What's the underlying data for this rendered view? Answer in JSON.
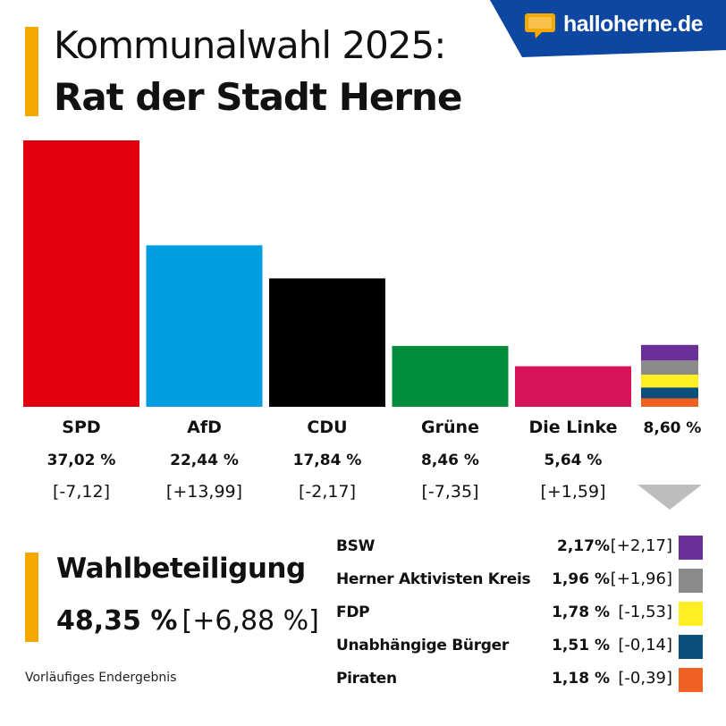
{
  "header": {
    "title_line1": "Kommunalwahl 2025:",
    "title_line2": "Rat der Stadt Herne",
    "accent_color": "#f5a800"
  },
  "brand": {
    "name": "halloherne.de",
    "banner_color": "#0d47a1",
    "icon_color": "#f5a800",
    "icon": "speech-bubble-icon"
  },
  "chart_data": {
    "type": "bar",
    "categories": [
      "SPD",
      "AfD",
      "CDU",
      "Grüne",
      "Die Linke"
    ],
    "values": [
      37.02,
      22.44,
      17.84,
      8.46,
      5.64
    ],
    "value_labels": [
      "37,02 %",
      "22,44 %",
      "17,84 %",
      "8,46 %",
      "5,64 %"
    ],
    "changes": [
      "[-7,12]",
      "[+13,99]",
      "[-2,17]",
      "[-7,35]",
      "[+1,59]"
    ],
    "colors": [
      "#e2000f",
      "#009ee0",
      "#000000",
      "#008c3a",
      "#d6145a"
    ],
    "others": {
      "total_value": 8.6,
      "total_label": "8,60 %",
      "parties": [
        "BSW",
        "Herner Aktivisten Kreis",
        "FDP",
        "Unabhängige Bürger",
        "Piraten"
      ],
      "values": [
        2.17,
        1.96,
        1.78,
        1.51,
        1.18
      ],
      "value_labels": [
        "2,17%",
        "1,96 %",
        "1,78 %",
        "1,51 %",
        "1,18 %"
      ],
      "changes": [
        "[+2,17]",
        "[+1,96]",
        "[-1,53]",
        "[-0,14]",
        "[-0,39]"
      ],
      "colors": [
        "#6b2f9a",
        "#8a8a8a",
        "#ffee22",
        "#0b4f7c",
        "#f06022"
      ]
    },
    "ylim": [
      0,
      37.02
    ],
    "grid": false
  },
  "turnout": {
    "title": "Wahlbeteiligung",
    "value": "48,35 %",
    "change": "[+6,88 %]"
  },
  "footnote": "Vorläufiges Endergebnis"
}
